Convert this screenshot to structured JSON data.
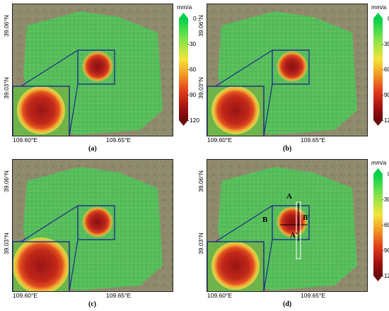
{
  "axis": {
    "lat_top": "39.06°N",
    "lat_bottom": "39.03°N",
    "lon_left": "109.60°E",
    "lon_right": "109.65°E"
  },
  "colorbar": {
    "unit": "mm/a",
    "ticks": [
      "0",
      "-30",
      "-60",
      "-90",
      "-120"
    ],
    "range": [
      0,
      -120
    ],
    "colors": [
      "#00d04a",
      "#7fe34a",
      "#f3e43a",
      "#f39a24",
      "#e03a1a",
      "#a01010",
      "#6a0a0a"
    ]
  },
  "panels": [
    {
      "caption": "(a)",
      "has_colorbar": true
    },
    {
      "caption": "(b)",
      "has_colorbar": true
    },
    {
      "caption": "(c)",
      "has_colorbar": false
    },
    {
      "caption": "(d)",
      "has_colorbar": true
    }
  ],
  "profile_labels": {
    "a": "A",
    "a_prime": "A'",
    "b": "B",
    "b_prime": "B'"
  }
}
